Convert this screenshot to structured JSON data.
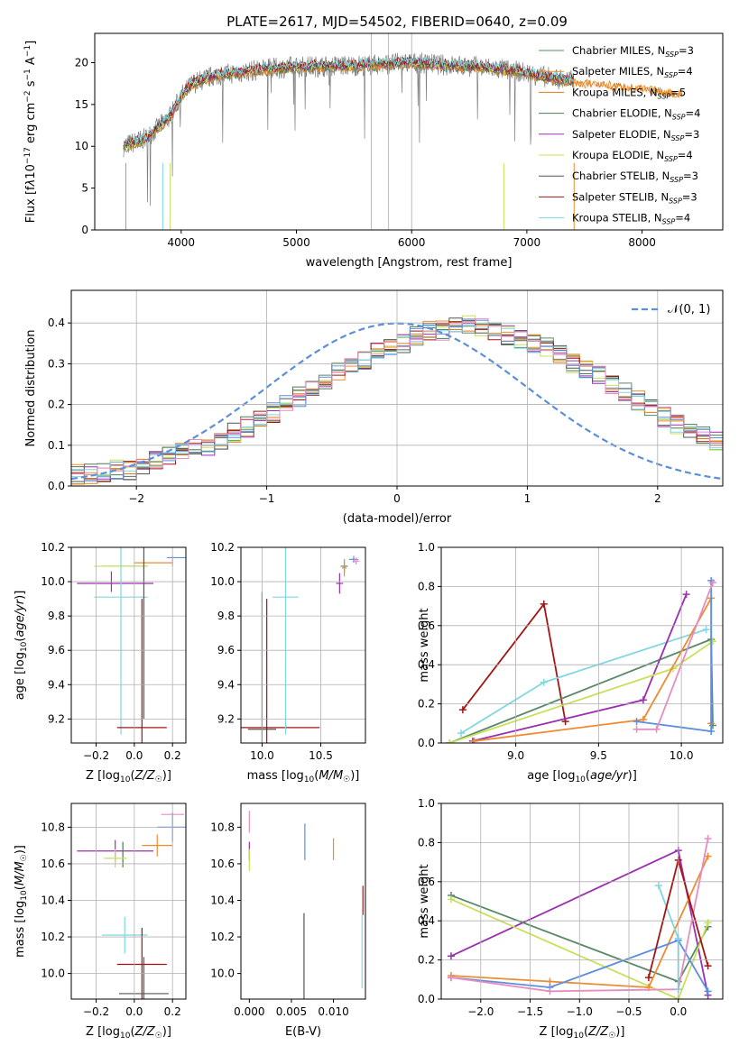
{
  "title": "PLATE=2617, MJD=54502, FIBERID=0640, z=0.09",
  "colors": {
    "Chabrier MILES": "#5a8a6a",
    "Salpeter MILES": "#f08a30",
    "Kroupa MILES": "#e07d10",
    "Chabrier ELODIE": "#4a7a55",
    "Salpeter ELODIE": "#9b2faf",
    "Kroupa ELODIE": "#c8e05a",
    "Chabrier STELIB": "#555555",
    "Salpeter STELIB": "#a31515",
    "Kroupa STELIB": "#7fd8e0",
    "extra_blue": "#5b8fe0",
    "extra_pink": "#e88cc0",
    "normal_curve": "#5b8fd8"
  },
  "chart_data": [
    {
      "type": "line",
      "xlabel": "wavelength [Angstrom, rest frame]",
      "ylabel": "Flux [f_λ 10^-17 erg cm^-2 s^-1 A^-1]",
      "xlim": [
        3250,
        8700
      ],
      "ylim": [
        0,
        23.5
      ],
      "xticks": [
        4000,
        5000,
        6000,
        7000,
        8000
      ],
      "yticks": [
        0,
        5,
        10,
        15,
        20
      ],
      "legend": {
        "placement": "right",
        "entries": [
          {
            "label": "Chabrier MILES, N_SSP=3",
            "color": "#5a8a6a"
          },
          {
            "label": "Salpeter MILES, N_SSP=4",
            "color": "#f08a30"
          },
          {
            "label": "Kroupa MILES, N_SSP=5",
            "color": "#e07d10"
          },
          {
            "label": "Chabrier ELODIE, N_SSP=4",
            "color": "#4a7a55"
          },
          {
            "label": "Salpeter ELODIE, N_SSP=3",
            "color": "#9b2faf"
          },
          {
            "label": "Kroupa ELODIE, N_SSP=4",
            "color": "#c8e05a"
          },
          {
            "label": "Chabrier STELIB, N_SSP=3",
            "color": "#555555"
          },
          {
            "label": "Salpeter STELIB, N_SSP=3",
            "color": "#a31515"
          },
          {
            "label": "Kroupa STELIB, N_SSP=4",
            "color": "#7fd8e0"
          }
        ]
      },
      "continuum": {
        "x": [
          3500,
          3700,
          3900,
          4000,
          4100,
          4300,
          4500,
          4700,
          5000,
          5300,
          5600,
          6000,
          6300,
          6600,
          6900,
          7200,
          7400
        ],
        "y": [
          10.0,
          11.0,
          13.5,
          16.0,
          17.5,
          18.5,
          18.8,
          19.2,
          19.5,
          19.6,
          19.7,
          20.0,
          19.7,
          19.5,
          19.0,
          18.2,
          17.8
        ]
      },
      "extra_continuum": {
        "x": [
          7400,
          7700,
          8000,
          8300
        ],
        "y": [
          17.8,
          17.5,
          17.0,
          16.5
        ]
      }
    },
    {
      "type": "line",
      "xlabel": "(data-model)/error",
      "ylabel": "Normed distribution",
      "xlim": [
        -2.5,
        2.5
      ],
      "ylim": [
        0,
        0.48
      ],
      "xticks": [
        -2,
        -1,
        0,
        1,
        2
      ],
      "yticks": [
        0.0,
        0.1,
        0.2,
        0.3,
        0.4
      ],
      "grid": true,
      "legend": {
        "placement": "top-right",
        "entries": [
          {
            "label": "𝒩(0, 1)",
            "color": "#5b8fd8"
          }
        ]
      },
      "histogram_bin_width": 0.1,
      "histogram_base": [
        0.03,
        0.03,
        0.035,
        0.04,
        0.04,
        0.05,
        0.06,
        0.07,
        0.08,
        0.09,
        0.1,
        0.115,
        0.13,
        0.145,
        0.16,
        0.18,
        0.2,
        0.22,
        0.24,
        0.26,
        0.28,
        0.3,
        0.31,
        0.33,
        0.34,
        0.35,
        0.37,
        0.38,
        0.38,
        0.39,
        0.4,
        0.39,
        0.38,
        0.37,
        0.36,
        0.35,
        0.34,
        0.32,
        0.3,
        0.29,
        0.27,
        0.25,
        0.23,
        0.21,
        0.19,
        0.17,
        0.15,
        0.14,
        0.12,
        0.11
      ],
      "histogram_tail": [
        0.1,
        0.09,
        0.08,
        0.07,
        0.06,
        0.06,
        0.05,
        0.04,
        0.04,
        0.03
      ],
      "histogram_series": [
        "Chabrier MILES",
        "Salpeter MILES",
        "Kroupa MILES",
        "Chabrier ELODIE",
        "Salpeter ELODIE",
        "Kroupa ELODIE",
        "Chabrier STELIB",
        "Salpeter STELIB",
        "Kroupa STELIB",
        "extra_blue",
        "extra_pink"
      ]
    },
    {
      "type": "scatter",
      "xlabel": "Z [log10(Z/Z☉)]",
      "ylabel": "age [log10(age/yr)]",
      "xlim": [
        -0.33,
        0.27
      ],
      "ylim": [
        9.06,
        10.2
      ],
      "xticks": [
        -0.2,
        0.0,
        0.2
      ],
      "yticks": [
        9.2,
        9.4,
        9.6,
        9.8,
        10.0,
        10.2
      ],
      "grid": true,
      "errorbars": [
        {
          "series": "Chabrier MILES",
          "x": -0.05,
          "y": 10.09,
          "xerr": 0.12,
          "yerr": 0.0
        },
        {
          "series": "Kroupa ELODIE",
          "x": -0.07,
          "y": 10.09,
          "xerr": 0.14,
          "yerr": 0.0
        },
        {
          "series": "Salpeter ELODIE",
          "x": -0.1,
          "y": 9.99,
          "xerr": 0.2,
          "yerr": 0.0
        },
        {
          "series": "Salpeter ELODIE",
          "x": -0.12,
          "y": 10.0,
          "xerr": 0.0,
          "yerr": 0.06
        },
        {
          "series": "Salpeter MILES",
          "x": 0.1,
          "y": 10.11,
          "xerr": 0.1,
          "yerr": 0.0
        },
        {
          "series": "extra_blue",
          "x": 0.22,
          "y": 10.14,
          "xerr": 0.05,
          "yerr": 0.0
        },
        {
          "series": "extra_pink",
          "x": 0.2,
          "y": 10.12,
          "xerr": 0.0,
          "yerr": 0.03
        },
        {
          "series": "Kroupa STELIB",
          "x": -0.07,
          "y": 9.91,
          "xerr": 0.14,
          "yerr": 0.8
        },
        {
          "series": "Chabrier STELIB",
          "x": 0.05,
          "y": 9.9,
          "xerr": 0.0,
          "yerr": 0.7
        },
        {
          "series": "Salpeter STELIB",
          "x": 0.04,
          "y": 9.15,
          "xerr": 0.13,
          "yerr": 0.75
        }
      ]
    },
    {
      "type": "scatter",
      "xlabel": "mass [log10(M/M☉)]",
      "ylabel": "",
      "xlim": [
        9.82,
        10.88
      ],
      "ylim": [
        9.06,
        10.2
      ],
      "xticks": [
        10.0,
        10.5
      ],
      "yticks": [
        9.2,
        9.4,
        9.6,
        9.8,
        10.0,
        10.2
      ],
      "grid": true,
      "errorbars": [
        {
          "series": "Chabrier MILES",
          "x": 10.7,
          "y": 10.09,
          "xerr": 0.03,
          "yerr": 0.04
        },
        {
          "series": "Salpeter MILES",
          "x": 10.7,
          "y": 10.08,
          "xerr": 0.02,
          "yerr": 0.05
        },
        {
          "series": "Salpeter ELODIE",
          "x": 10.66,
          "y": 9.99,
          "xerr": 0.03,
          "yerr": 0.06
        },
        {
          "series": "extra_blue",
          "x": 10.78,
          "y": 10.13,
          "xerr": 0.04,
          "yerr": 0.02
        },
        {
          "series": "extra_pink",
          "x": 10.8,
          "y": 10.12,
          "xerr": 0.03,
          "yerr": 0.02
        },
        {
          "series": "Chabrier STELIB",
          "x": 10.0,
          "y": 9.14,
          "xerr": 0.12,
          "yerr": 0.8
        },
        {
          "series": "Salpeter STELIB",
          "x": 10.04,
          "y": 9.15,
          "xerr": 0.45,
          "yerr": 0.75
        },
        {
          "series": "Kroupa STELIB",
          "x": 10.2,
          "y": 9.91,
          "xerr": 0.11,
          "yerr": 0.8
        }
      ]
    },
    {
      "type": "line",
      "xlabel": "age [log10(age/yr)]",
      "ylabel": "mass weight",
      "xlim": [
        8.55,
        10.25
      ],
      "ylim": [
        0,
        1.0
      ],
      "xticks": [
        9.0,
        9.5,
        10.0
      ],
      "yticks": [
        0.0,
        0.2,
        0.4,
        0.6,
        0.8,
        1.0
      ],
      "grid": true,
      "series": [
        {
          "name": "Salpeter STELIB",
          "x": [
            8.68,
            9.17,
            9.3
          ],
          "y": [
            0.17,
            0.71,
            0.11
          ]
        },
        {
          "name": "Kroupa STELIB",
          "x": [
            8.67,
            9.17,
            10.15
          ],
          "y": [
            0.05,
            0.31,
            0.58
          ]
        },
        {
          "name": "Chabrier MILES",
          "x": [
            8.6,
            10.18,
            10.19
          ],
          "y": [
            0.0,
            0.53,
            0.09
          ]
        },
        {
          "name": "Salpeter ELODIE",
          "x": [
            8.74,
            9.77,
            10.03
          ],
          "y": [
            0.01,
            0.22,
            0.76
          ]
        },
        {
          "name": "Kroupa ELODIE",
          "x": [
            8.6,
            9.95,
            10.19
          ],
          "y": [
            0.0,
            0.38,
            0.52
          ]
        },
        {
          "name": "Salpeter MILES",
          "x": [
            8.75,
            9.77,
            10.18,
            10.18
          ],
          "y": [
            0.01,
            0.12,
            0.74,
            0.1
          ]
        },
        {
          "name": "extra_blue",
          "x": [
            9.73,
            10.18,
            10.18
          ],
          "y": [
            0.11,
            0.06,
            0.83
          ]
        },
        {
          "name": "extra_pink",
          "x": [
            9.73,
            9.85,
            10.19
          ],
          "y": [
            0.07,
            0.07,
            0.82
          ]
        }
      ]
    },
    {
      "type": "scatter",
      "xlabel": "Z [log10(Z/Z☉)]",
      "ylabel": "mass [log10(M/M☉)]",
      "xlim": [
        -0.33,
        0.27
      ],
      "ylim": [
        9.86,
        10.93
      ],
      "xticks": [
        -0.2,
        0.0,
        0.2
      ],
      "yticks": [
        10.0,
        10.2,
        10.4,
        10.6,
        10.8
      ],
      "grid": true,
      "errorbars": [
        {
          "series": "extra_pink",
          "x": 0.2,
          "y": 10.87,
          "xerr": 0.06,
          "yerr": 0.0
        },
        {
          "series": "extra_blue",
          "x": 0.2,
          "y": 10.8,
          "xerr": 0.08,
          "yerr": 0.08
        },
        {
          "series": "Salpeter MILES",
          "x": 0.12,
          "y": 10.7,
          "xerr": 0.08,
          "yerr": 0.06
        },
        {
          "series": "Salpeter ELODIE",
          "x": -0.1,
          "y": 10.67,
          "xerr": 0.2,
          "yerr": 0.06
        },
        {
          "series": "Chabrier ELODIE",
          "x": -0.06,
          "y": 10.65,
          "xerr": 0.0,
          "yerr": 0.07
        },
        {
          "series": "Kroupa ELODIE",
          "x": -0.1,
          "y": 10.63,
          "xerr": 0.06,
          "yerr": 0.05
        },
        {
          "series": "Kroupa STELIB",
          "x": -0.05,
          "y": 10.21,
          "xerr": 0.12,
          "yerr": 0.1
        },
        {
          "series": "Salpeter STELIB",
          "x": 0.04,
          "y": 10.05,
          "xerr": 0.13,
          "yerr": 0.2
        },
        {
          "series": "Chabrier STELIB",
          "x": 0.05,
          "y": 9.89,
          "xerr": 0.13,
          "yerr": 0.2
        }
      ]
    },
    {
      "type": "scatter",
      "xlabel": "E(B-V)",
      "ylabel": "",
      "xlim": [
        -0.001,
        0.0138
      ],
      "ylim": [
        9.86,
        10.93
      ],
      "xticks": [
        0.0,
        0.005,
        0.01
      ],
      "yticks": [
        10.0,
        10.2,
        10.4,
        10.6,
        10.8
      ],
      "grid": false,
      "errorbars": [
        {
          "series": "extra_pink",
          "x": 0.0,
          "y": 10.83,
          "xerr": 0.0,
          "yerr": 0.06
        },
        {
          "series": "Salpeter ELODIE",
          "x": 0.0,
          "y": 10.67,
          "xerr": 0.0,
          "yerr": 0.05
        },
        {
          "series": "Kroupa ELODIE",
          "x": 0.0,
          "y": 10.62,
          "xerr": 0.0,
          "yerr": 0.06
        },
        {
          "series": "extra_blue",
          "x": 0.0066,
          "y": 10.72,
          "xerr": 0.0,
          "yerr": 0.1
        },
        {
          "series": "Salpeter MILES",
          "x": 0.01,
          "y": 10.68,
          "xerr": 0.0,
          "yerr": 0.06
        },
        {
          "series": "Chabrier STELIB",
          "x": 0.0065,
          "y": 10.09,
          "xerr": 0.0,
          "yerr": 0.24
        },
        {
          "series": "Salpeter STELIB",
          "x": 0.0135,
          "y": 10.4,
          "xerr": 0.0,
          "yerr": 0.08
        },
        {
          "series": "Kroupa STELIB",
          "x": 0.0134,
          "y": 10.12,
          "xerr": 0.0,
          "yerr": 0.2
        }
      ]
    },
    {
      "type": "line",
      "xlabel": "Z [log10(Z/Z☉)]",
      "ylabel": "mass weight",
      "xlim": [
        -2.4,
        0.45
      ],
      "ylim": [
        0,
        1.0
      ],
      "xticks": [
        -2.0,
        -1.5,
        -1.0,
        -0.5,
        0.0
      ],
      "yticks": [
        0.0,
        0.2,
        0.4,
        0.6,
        0.8,
        1.0
      ],
      "grid": true,
      "series": [
        {
          "name": "Salpeter ELODIE",
          "x": [
            -2.3,
            0.0,
            0.3
          ],
          "y": [
            0.22,
            0.76,
            0.02
          ]
        },
        {
          "name": "Chabrier MILES",
          "x": [
            -2.3,
            0.0,
            0.3
          ],
          "y": [
            0.53,
            0.09,
            0.37
          ]
        },
        {
          "name": "Kroupa ELODIE",
          "x": [
            -2.3,
            0.0,
            0.3
          ],
          "y": [
            0.51,
            0.0,
            0.39
          ]
        },
        {
          "name": "Salpeter MILES",
          "x": [
            -2.3,
            -1.3,
            -0.3,
            0.3
          ],
          "y": [
            0.12,
            0.09,
            0.06,
            0.73
          ]
        },
        {
          "name": "extra_blue",
          "x": [
            -2.3,
            -1.3,
            0.0,
            0.3
          ],
          "y": [
            0.11,
            0.06,
            0.3,
            0.04
          ]
        },
        {
          "name": "extra_pink",
          "x": [
            -2.3,
            -1.3,
            0.0,
            0.3
          ],
          "y": [
            0.11,
            0.04,
            0.05,
            0.82
          ]
        },
        {
          "name": "Kroupa STELIB",
          "x": [
            -0.2,
            0.0,
            0.0
          ],
          "y": [
            0.58,
            0.31,
            0.05
          ]
        },
        {
          "name": "Salpeter STELIB",
          "x": [
            -0.3,
            0.0,
            0.3
          ],
          "y": [
            0.11,
            0.71,
            0.17
          ]
        }
      ]
    }
  ]
}
